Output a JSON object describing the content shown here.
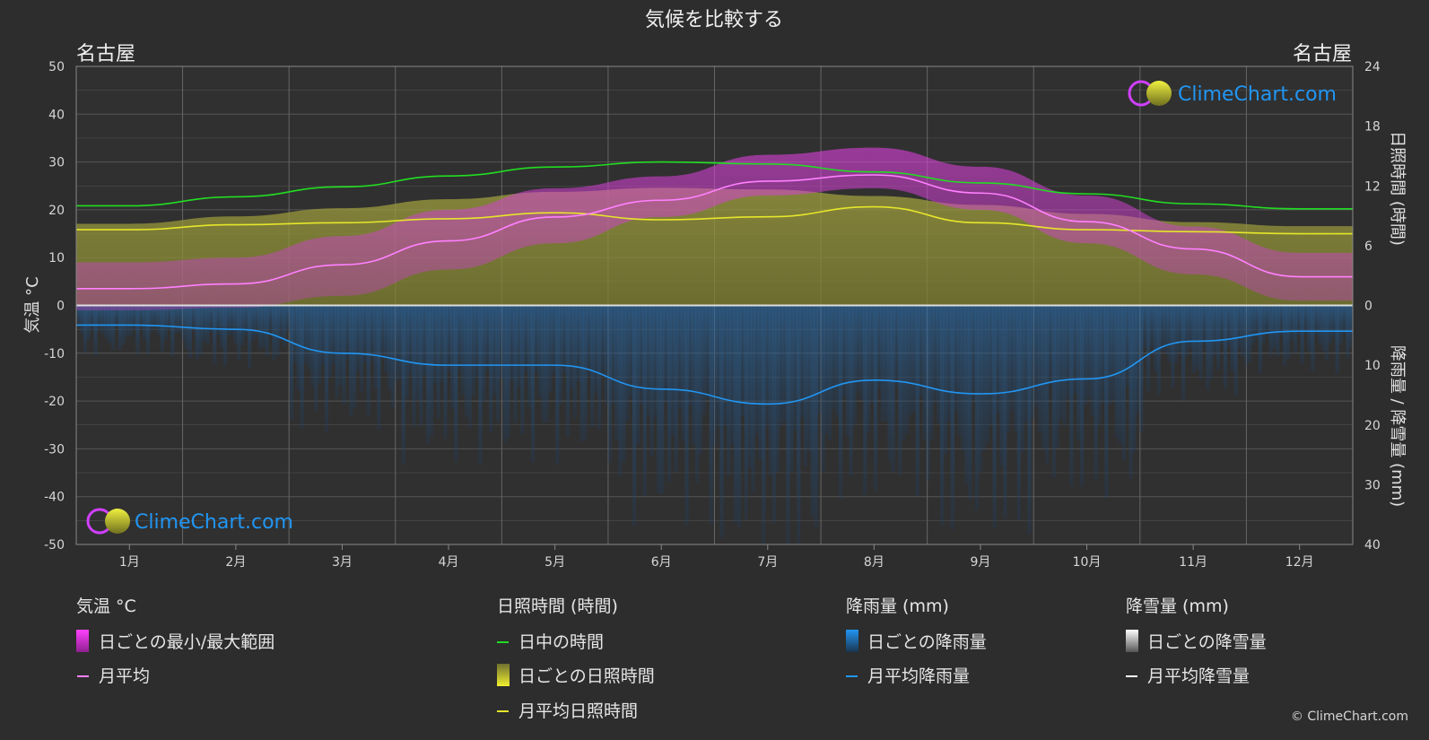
{
  "title": "気候を比較する",
  "city_left": "名古屋",
  "city_right": "名古屋",
  "logo_text": "ClimeChart.com",
  "copyright": "© ClimeChart.com",
  "axis_labels": {
    "left": "気温 °C",
    "right_top": "日照時間 (時間)",
    "right_bottom": "降雨量 / 降雪量 (mm)"
  },
  "legend": {
    "temperature": {
      "heading": "気温 °C",
      "items": [
        "日ごとの最小/最大範囲",
        "月平均"
      ]
    },
    "sunshine": {
      "heading": "日照時間 (時間)",
      "items": [
        "日中の時間",
        "日ごとの日照時間",
        "月平均日照時間"
      ]
    },
    "rain": {
      "heading": "降雨量 (mm)",
      "items": [
        "日ごとの降雨量",
        "月平均降雨量"
      ]
    },
    "snow": {
      "heading": "降雪量 (mm)",
      "items": [
        "日ごとの降雪量",
        "月平均降雪量"
      ]
    }
  },
  "colors": {
    "background": "#2d2d2d",
    "grid": "#5a5a5a",
    "temp_range": "#e040e0",
    "temp_avg": "#ff80ff",
    "daylight": "#22dd22",
    "sunshine_fill": "#9a9a30",
    "sunshine_avg": "#e6e62a",
    "rain": "#2a7fd0",
    "rain_avg": "#2196f3",
    "snow_avg": "#ffffff"
  },
  "chart_data": {
    "type": "line",
    "categories": [
      "1月",
      "2月",
      "3月",
      "4月",
      "5月",
      "6月",
      "7月",
      "8月",
      "9月",
      "10月",
      "11月",
      "12月"
    ],
    "axes": {
      "temperature": {
        "ylim": [
          -50,
          50
        ],
        "ticks": [
          50,
          40,
          30,
          20,
          10,
          0,
          -10,
          -20,
          -30,
          -40,
          -50
        ]
      },
      "sunshine": {
        "ylim": [
          0,
          24
        ],
        "ticks": [
          24,
          18,
          12,
          6,
          0
        ]
      },
      "precipitation": {
        "ylim": [
          0,
          40
        ],
        "ticks": [
          0,
          10,
          20,
          30,
          40
        ],
        "inverted": true
      }
    },
    "series": [
      {
        "name": "日中の時間",
        "axis": "sunshine",
        "values": [
          10.0,
          10.9,
          11.9,
          13.0,
          13.9,
          14.4,
          14.2,
          13.4,
          12.3,
          11.2,
          10.2,
          9.7
        ]
      },
      {
        "name": "月平均日照時間",
        "axis": "sunshine",
        "values": [
          7.6,
          8.1,
          8.3,
          8.7,
          9.3,
          8.6,
          8.9,
          9.9,
          8.3,
          7.6,
          7.4,
          7.2
        ]
      },
      {
        "name": "月平均",
        "axis": "temperature",
        "values": [
          3.5,
          4.5,
          8.5,
          13.5,
          18.5,
          22.0,
          26.0,
          27.3,
          23.5,
          17.5,
          11.8,
          6.0
        ]
      },
      {
        "name": "月平均降雨量",
        "axis": "precipitation",
        "values": [
          3.3,
          4.0,
          8.0,
          10.0,
          10.0,
          14.0,
          16.5,
          12.5,
          14.8,
          12.3,
          6.0,
          4.3
        ]
      },
      {
        "name": "月平均降雪量",
        "axis": "precipitation",
        "values": [
          0,
          0,
          0,
          0,
          0,
          0,
          0,
          0,
          0,
          0,
          0,
          0
        ]
      }
    ],
    "daily_temperature_range": {
      "min": [
        -1.0,
        -0.5,
        2.0,
        7.5,
        13.0,
        18.5,
        23.0,
        24.5,
        20.0,
        13.0,
        6.5,
        1.0
      ],
      "max": [
        9.0,
        10.0,
        14.5,
        20.0,
        24.5,
        27.0,
        31.5,
        33.0,
        29.0,
        23.0,
        16.5,
        11.0
      ]
    }
  }
}
